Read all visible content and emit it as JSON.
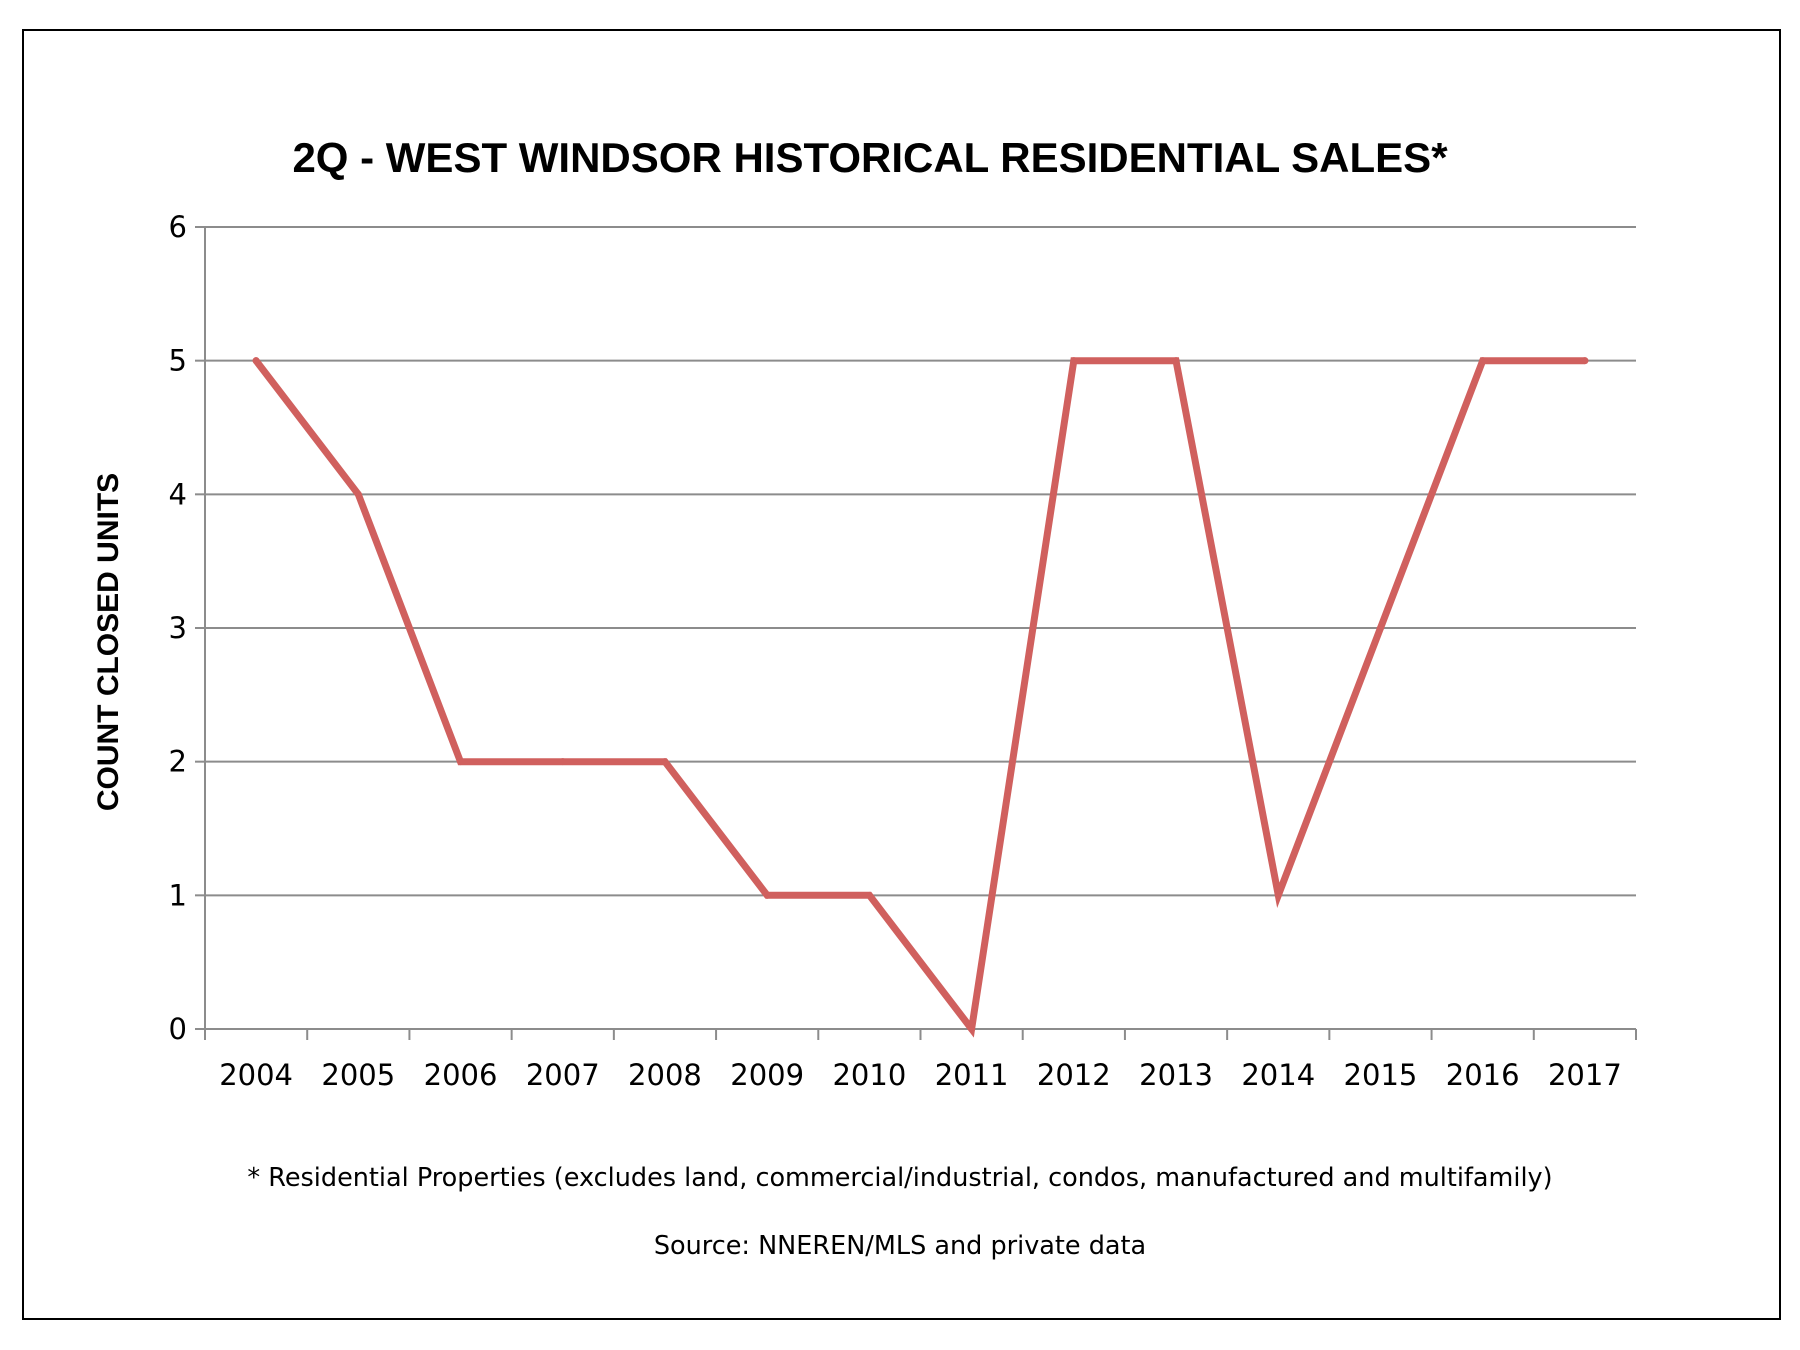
{
  "chart_data": {
    "type": "line",
    "title": "2Q - WEST WINDSOR HISTORICAL RESIDENTIAL SALES*",
    "xlabel": "",
    "ylabel": "COUNT CLOSED UNITS",
    "categories": [
      "2004",
      "2005",
      "2006",
      "2007",
      "2008",
      "2009",
      "2010",
      "2011",
      "2012",
      "2013",
      "2014",
      "2015",
      "2016",
      "2017"
    ],
    "series": [
      {
        "values": [
          5,
          4,
          2,
          2,
          2,
          1,
          1,
          0,
          5,
          5,
          1,
          3,
          5,
          5
        ]
      }
    ],
    "ylim": [
      0,
      6
    ],
    "yticks": [
      "0",
      "1",
      "2",
      "3",
      "4",
      "5",
      "6"
    ],
    "grid": true,
    "legend": "none",
    "colors": {
      "line": "#d0605e",
      "grid": "#8c8c8c",
      "axis": "#8c8c8c"
    }
  },
  "footnote": "* Residential Properties (excludes land, commercial/industrial, condos, manufactured and multifamily)",
  "source": "Source: NNEREN/MLS and private data"
}
